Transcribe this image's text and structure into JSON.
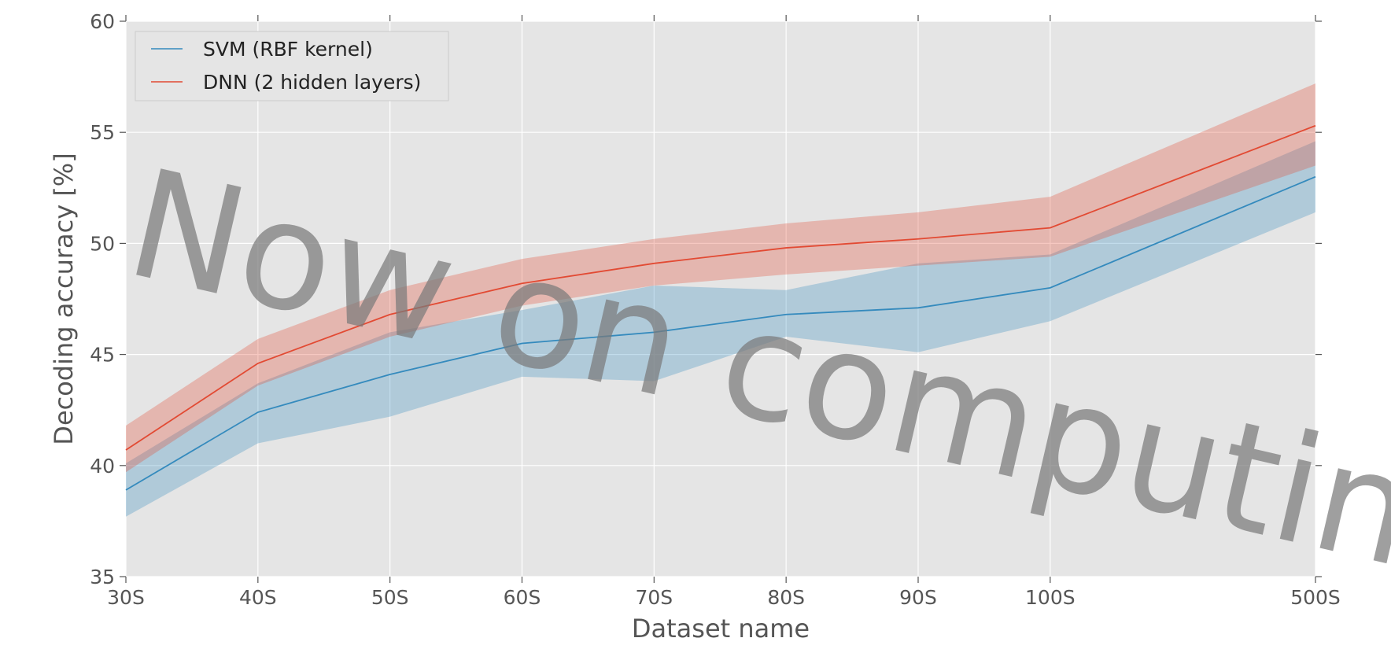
{
  "chart_data": {
    "type": "line",
    "title": "",
    "xlabel": "Dataset name",
    "ylabel": "Decoding accuracy [%]",
    "categories": [
      "30S",
      "40S",
      "50S",
      "60S",
      "70S",
      "80S",
      "90S",
      "100S",
      "500S"
    ],
    "ylim": [
      35,
      60
    ],
    "yticks": [
      "35",
      "40",
      "45",
      "50",
      "55",
      "60"
    ],
    "grid": true,
    "legend_position": "top-left",
    "series": [
      {
        "name": "SVM (RBF kernel)",
        "color": "#348abd",
        "values": [
          38.9,
          42.4,
          44.1,
          45.5,
          46.0,
          46.8,
          47.1,
          48.0,
          53.0
        ],
        "lower": [
          37.7,
          41.0,
          42.2,
          44.0,
          43.8,
          45.8,
          45.1,
          46.5,
          51.4
        ],
        "upper": [
          40.1,
          43.7,
          46.0,
          47.0,
          48.1,
          47.9,
          49.1,
          49.5,
          54.6
        ]
      },
      {
        "name": "DNN (2 hidden layers)",
        "color": "#e24a33",
        "values": [
          40.7,
          44.6,
          46.8,
          48.2,
          49.1,
          49.8,
          50.2,
          50.7,
          55.3
        ],
        "lower": [
          39.7,
          43.6,
          45.8,
          47.2,
          48.1,
          48.6,
          49.0,
          49.4,
          53.5
        ],
        "upper": [
          41.8,
          45.7,
          47.9,
          49.3,
          50.2,
          50.9,
          51.4,
          52.1,
          57.2
        ]
      }
    ]
  },
  "watermark": {
    "text": "Now on computing",
    "color": "#7a7a7a"
  }
}
